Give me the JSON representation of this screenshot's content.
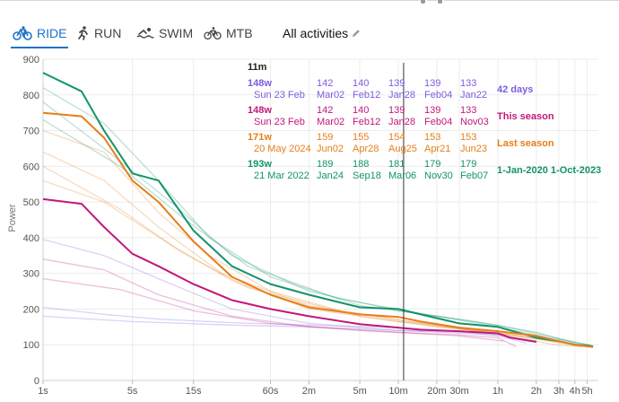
{
  "tabs": [
    {
      "label": "RIDE",
      "icon": "bike-icon",
      "active": true
    },
    {
      "label": "RUN",
      "icon": "runner-icon",
      "active": false
    },
    {
      "label": "SWIM",
      "icon": "swimmer-icon",
      "active": false
    },
    {
      "label": "MTB",
      "icon": "mountain-bike-icon",
      "active": false
    }
  ],
  "filter": {
    "label": "All activities",
    "icon": "pencil-icon"
  },
  "colors": {
    "accent": "#1a73c8",
    "days42": "#7b5ce0",
    "season": "#c2187a",
    "last_season": "#e67e1a",
    "range": "#12936a",
    "cursor": "#333333"
  },
  "chart_data": {
    "type": "line",
    "ylabel": "Power",
    "x_scale": "log",
    "x_ticks": [
      {
        "label": "1s",
        "seconds": 1
      },
      {
        "label": "5s",
        "seconds": 5
      },
      {
        "label": "15s",
        "seconds": 15
      },
      {
        "label": "60s",
        "seconds": 60
      },
      {
        "label": "2m",
        "seconds": 120
      },
      {
        "label": "5m",
        "seconds": 300
      },
      {
        "label": "10m",
        "seconds": 600
      },
      {
        "label": "20m",
        "seconds": 1200
      },
      {
        "label": "30m",
        "seconds": 1800
      },
      {
        "label": "1h",
        "seconds": 3600
      },
      {
        "label": "2h",
        "seconds": 7200
      },
      {
        "label": "3h",
        "seconds": 10800
      },
      {
        "label": "4h",
        "seconds": 14400
      },
      {
        "label": "5h",
        "seconds": 18000
      }
    ],
    "xlim": [
      1,
      22000
    ],
    "ylim": [
      0,
      900
    ],
    "y_ticks": [
      0,
      100,
      200,
      300,
      400,
      500,
      600,
      700,
      800,
      900
    ],
    "grid": true,
    "cursor": {
      "label": "11m",
      "seconds": 660
    },
    "legend_rows": [
      {
        "key": "days42",
        "name": "42 days",
        "best": {
          "value": "148w",
          "date": "Sun 23 Feb"
        },
        "others": [
          {
            "value": "142",
            "date": "Mar02"
          },
          {
            "value": "140",
            "date": "Feb12"
          },
          {
            "value": "139",
            "date": "Jan28"
          },
          {
            "value": "139",
            "date": "Feb04"
          },
          {
            "value": "133",
            "date": "Jan22"
          }
        ]
      },
      {
        "key": "season",
        "name": "This season",
        "best": {
          "value": "148w",
          "date": "Sun 23 Feb"
        },
        "others": [
          {
            "value": "142",
            "date": "Mar02"
          },
          {
            "value": "140",
            "date": "Feb12"
          },
          {
            "value": "139",
            "date": "Jan28"
          },
          {
            "value": "139",
            "date": "Feb04"
          },
          {
            "value": "133",
            "date": "Nov03"
          }
        ]
      },
      {
        "key": "last_season",
        "name": "Last season",
        "best": {
          "value": "171w",
          "date": "20 May 2024"
        },
        "others": [
          {
            "value": "159",
            "date": "Jun02"
          },
          {
            "value": "155",
            "date": "Apr28"
          },
          {
            "value": "154",
            "date": "Aug25"
          },
          {
            "value": "153",
            "date": "Apr21"
          },
          {
            "value": "153",
            "date": "Jun23"
          }
        ]
      },
      {
        "key": "range",
        "name": "1-Jan-2020 1-Oct-2023",
        "best": {
          "value": "193w",
          "date": "21 Mar 2022"
        },
        "others": [
          {
            "value": "189",
            "date": "Jan24"
          },
          {
            "value": "188",
            "date": "Sep18"
          },
          {
            "value": "181",
            "date": "Mar06"
          },
          {
            "value": "179",
            "date": "Nov30"
          },
          {
            "value": "179",
            "date": "Feb07"
          }
        ]
      }
    ],
    "series": [
      {
        "key": "range",
        "bold": true,
        "points": [
          [
            1,
            862
          ],
          [
            2,
            810
          ],
          [
            3,
            700
          ],
          [
            5,
            580
          ],
          [
            8,
            560
          ],
          [
            15,
            420
          ],
          [
            30,
            320
          ],
          [
            60,
            270
          ],
          [
            120,
            240
          ],
          [
            300,
            205
          ],
          [
            600,
            200
          ],
          [
            900,
            185
          ],
          [
            1800,
            160
          ],
          [
            3600,
            150
          ],
          [
            7200,
            120
          ],
          [
            10800,
            110
          ],
          [
            14400,
            100
          ],
          [
            18000,
            98
          ],
          [
            20000,
            95
          ]
        ]
      },
      {
        "key": "last_season",
        "bold": true,
        "points": [
          [
            1,
            750
          ],
          [
            2,
            740
          ],
          [
            3,
            680
          ],
          [
            5,
            560
          ],
          [
            8,
            500
          ],
          [
            15,
            390
          ],
          [
            30,
            290
          ],
          [
            60,
            240
          ],
          [
            120,
            205
          ],
          [
            300,
            185
          ],
          [
            600,
            178
          ],
          [
            900,
            165
          ],
          [
            1800,
            148
          ],
          [
            3600,
            138
          ],
          [
            7200,
            125
          ],
          [
            10800,
            110
          ],
          [
            14400,
            100
          ],
          [
            18000,
            96
          ],
          [
            20000,
            94
          ]
        ]
      },
      {
        "key": "season",
        "bold": true,
        "points": [
          [
            1,
            508
          ],
          [
            2,
            495
          ],
          [
            3,
            430
          ],
          [
            5,
            355
          ],
          [
            8,
            320
          ],
          [
            15,
            270
          ],
          [
            30,
            225
          ],
          [
            60,
            200
          ],
          [
            120,
            180
          ],
          [
            300,
            158
          ],
          [
            600,
            148
          ],
          [
            900,
            142
          ],
          [
            1800,
            138
          ],
          [
            3600,
            132
          ],
          [
            4500,
            120
          ],
          [
            7200,
            108
          ]
        ]
      },
      {
        "key": "days42",
        "bold": false,
        "points": [
          [
            1,
            205
          ],
          [
            3,
            185
          ],
          [
            8,
            172
          ],
          [
            30,
            162
          ],
          [
            120,
            155
          ],
          [
            600,
            148
          ],
          [
            1800,
            138
          ],
          [
            3600,
            130
          ],
          [
            5400,
            115
          ],
          [
            7200,
            110
          ]
        ]
      },
      {
        "key": "days42",
        "bold": false,
        "points": [
          [
            1,
            395
          ],
          [
            3,
            350
          ],
          [
            8,
            285
          ],
          [
            30,
            200
          ],
          [
            120,
            160
          ],
          [
            600,
            140
          ],
          [
            1800,
            133
          ],
          [
            3600,
            128
          ],
          [
            7200,
            110
          ]
        ]
      },
      {
        "key": "days42",
        "bold": false,
        "points": [
          [
            1,
            180
          ],
          [
            5,
            165
          ],
          [
            30,
            155
          ],
          [
            120,
            150
          ],
          [
            600,
            140
          ],
          [
            1800,
            136
          ],
          [
            3600,
            125
          ],
          [
            6000,
            105
          ]
        ]
      },
      {
        "key": "season",
        "bold": false,
        "points": [
          [
            1,
            340
          ],
          [
            3,
            310
          ],
          [
            8,
            240
          ],
          [
            30,
            180
          ],
          [
            120,
            150
          ],
          [
            600,
            135
          ],
          [
            1800,
            128
          ],
          [
            3600,
            120
          ],
          [
            5000,
            95
          ]
        ]
      },
      {
        "key": "season",
        "bold": false,
        "points": [
          [
            1,
            285
          ],
          [
            4,
            255
          ],
          [
            15,
            195
          ],
          [
            60,
            160
          ],
          [
            300,
            140
          ],
          [
            1800,
            125
          ],
          [
            4000,
            110
          ]
        ]
      },
      {
        "key": "last_season",
        "bold": false,
        "points": [
          [
            1,
            700
          ],
          [
            3,
            640
          ],
          [
            8,
            470
          ],
          [
            20,
            350
          ],
          [
            60,
            250
          ],
          [
            300,
            180
          ],
          [
            1200,
            150
          ],
          [
            3600,
            135
          ],
          [
            9000,
            110
          ],
          [
            16000,
            95
          ]
        ]
      },
      {
        "key": "last_season",
        "bold": false,
        "points": [
          [
            1,
            640
          ],
          [
            3,
            560
          ],
          [
            8,
            430
          ],
          [
            25,
            300
          ],
          [
            120,
            210
          ],
          [
            600,
            170
          ],
          [
            1800,
            145
          ],
          [
            5400,
            125
          ],
          [
            12000,
            105
          ]
        ]
      },
      {
        "key": "last_season",
        "bold": false,
        "points": [
          [
            1,
            600
          ],
          [
            4,
            480
          ],
          [
            12,
            360
          ],
          [
            40,
            260
          ],
          [
            200,
            195
          ],
          [
            900,
            160
          ],
          [
            3600,
            130
          ],
          [
            10000,
            100
          ],
          [
            20000,
            92
          ]
        ]
      },
      {
        "key": "last_season",
        "bold": false,
        "points": [
          [
            1,
            560
          ],
          [
            3,
            500
          ],
          [
            10,
            380
          ],
          [
            30,
            280
          ],
          [
            120,
            200
          ],
          [
            600,
            165
          ],
          [
            2400,
            140
          ],
          [
            8000,
            115
          ],
          [
            19000,
            96
          ]
        ]
      },
      {
        "key": "range",
        "bold": false,
        "points": [
          [
            1,
            820
          ],
          [
            3,
            720
          ],
          [
            8,
            560
          ],
          [
            20,
            400
          ],
          [
            60,
            290
          ],
          [
            300,
            210
          ],
          [
            1200,
            180
          ],
          [
            3600,
            150
          ],
          [
            9000,
            120
          ],
          [
            20000,
            98
          ]
        ]
      },
      {
        "key": "range",
        "bold": false,
        "points": [
          [
            1,
            780
          ],
          [
            3,
            650
          ],
          [
            10,
            500
          ],
          [
            30,
            350
          ],
          [
            120,
            250
          ],
          [
            600,
            195
          ],
          [
            2400,
            165
          ],
          [
            7200,
            135
          ],
          [
            16000,
            100
          ]
        ]
      },
      {
        "key": "range",
        "bold": false,
        "points": [
          [
            1,
            730
          ],
          [
            4,
            600
          ],
          [
            12,
            460
          ],
          [
            40,
            320
          ],
          [
            200,
            230
          ],
          [
            1000,
            185
          ],
          [
            3600,
            155
          ],
          [
            10800,
            118
          ],
          [
            20000,
            96
          ]
        ]
      }
    ]
  }
}
